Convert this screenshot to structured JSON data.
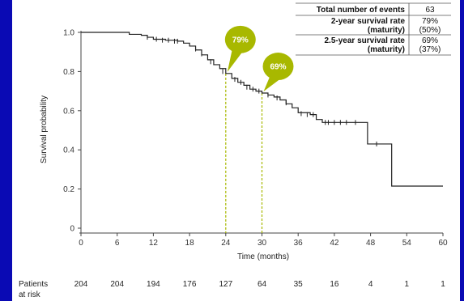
{
  "chart_data": {
    "type": "line",
    "subtype": "kaplan-meier",
    "title": "",
    "xlabel": "Time (months)",
    "ylabel": "Survival probability",
    "xlim": [
      0,
      60
    ],
    "ylim": [
      0,
      1.0
    ],
    "x_ticks": [
      0,
      6,
      12,
      18,
      24,
      30,
      36,
      42,
      48,
      54,
      60
    ],
    "y_ticks": [
      "0",
      "0.2",
      "0.4",
      "0.6",
      "0.8",
      "1.0"
    ],
    "y_tick_values": [
      0,
      0.2,
      0.4,
      0.6,
      0.8,
      1.0
    ],
    "grid": false,
    "series": [
      {
        "color": "#222222",
        "points": [
          [
            0,
            1.0
          ],
          [
            7.5,
            1.0
          ],
          [
            8,
            0.99
          ],
          [
            10,
            0.985
          ],
          [
            11,
            0.975
          ],
          [
            12,
            0.965
          ],
          [
            14,
            0.96
          ],
          [
            16,
            0.955
          ],
          [
            17,
            0.945
          ],
          [
            18,
            0.93
          ],
          [
            19,
            0.91
          ],
          [
            20,
            0.885
          ],
          [
            21,
            0.86
          ],
          [
            22,
            0.835
          ],
          [
            23,
            0.815
          ],
          [
            24,
            0.79
          ],
          [
            25,
            0.765
          ],
          [
            26,
            0.745
          ],
          [
            27,
            0.73
          ],
          [
            28,
            0.71
          ],
          [
            29,
            0.7
          ],
          [
            30,
            0.69
          ],
          [
            31,
            0.68
          ],
          [
            32,
            0.67
          ],
          [
            33,
            0.655
          ],
          [
            34,
            0.635
          ],
          [
            35,
            0.615
          ],
          [
            36,
            0.59
          ],
          [
            38,
            0.58
          ],
          [
            39,
            0.555
          ],
          [
            40,
            0.54
          ],
          [
            43,
            0.54
          ],
          [
            47.5,
            0.54
          ],
          [
            47.5,
            0.43
          ],
          [
            51.5,
            0.43
          ],
          [
            51.5,
            0.215
          ],
          [
            60,
            0.215
          ]
        ],
        "censored": [
          [
            11,
            0.975
          ],
          [
            12.5,
            0.965
          ],
          [
            13.5,
            0.96
          ],
          [
            14.5,
            0.96
          ],
          [
            15.5,
            0.955
          ],
          [
            16,
            0.955
          ],
          [
            19,
            0.915
          ],
          [
            20,
            0.89
          ],
          [
            21.5,
            0.85
          ],
          [
            23.5,
            0.8
          ],
          [
            25.5,
            0.76
          ],
          [
            26.5,
            0.745
          ],
          [
            27.5,
            0.72
          ],
          [
            28.5,
            0.71
          ],
          [
            29.5,
            0.7
          ],
          [
            31,
            0.68
          ],
          [
            32.5,
            0.665
          ],
          [
            34,
            0.64
          ],
          [
            36.5,
            0.585
          ],
          [
            37.5,
            0.58
          ],
          [
            38.5,
            0.58
          ],
          [
            40.5,
            0.54
          ],
          [
            41,
            0.54
          ],
          [
            42,
            0.54
          ],
          [
            43,
            0.54
          ],
          [
            44,
            0.54
          ],
          [
            45.5,
            0.54
          ],
          [
            49,
            0.43
          ]
        ]
      }
    ],
    "annotations": [
      {
        "x": 24,
        "y": 0.79,
        "label": "79%",
        "color": "#a8b800"
      },
      {
        "x": 30,
        "y": 0.69,
        "label": "69%",
        "color": "#a8b800"
      }
    ],
    "at_risk": {
      "label_line1": "Patients",
      "label_line2": "at risk",
      "times": [
        0,
        6,
        12,
        18,
        24,
        30,
        36,
        42,
        48,
        54,
        60
      ],
      "values": [
        "204",
        "204",
        "194",
        "176",
        "127",
        "64",
        "35",
        "16",
        "4",
        "1",
        "1"
      ]
    },
    "summary_table": {
      "rows": [
        {
          "label_line1": "Total number of events",
          "label_line2": "",
          "value_line1": "63",
          "value_line2": ""
        },
        {
          "label_line1": "2-year survival rate",
          "label_line2": "(maturity)",
          "value_line1": "79%",
          "value_line2": "(50%)"
        },
        {
          "label_line1": "2.5-year survival rate",
          "label_line2": "(maturity)",
          "value_line1": "69%",
          "value_line2": "(37%)"
        }
      ]
    }
  }
}
